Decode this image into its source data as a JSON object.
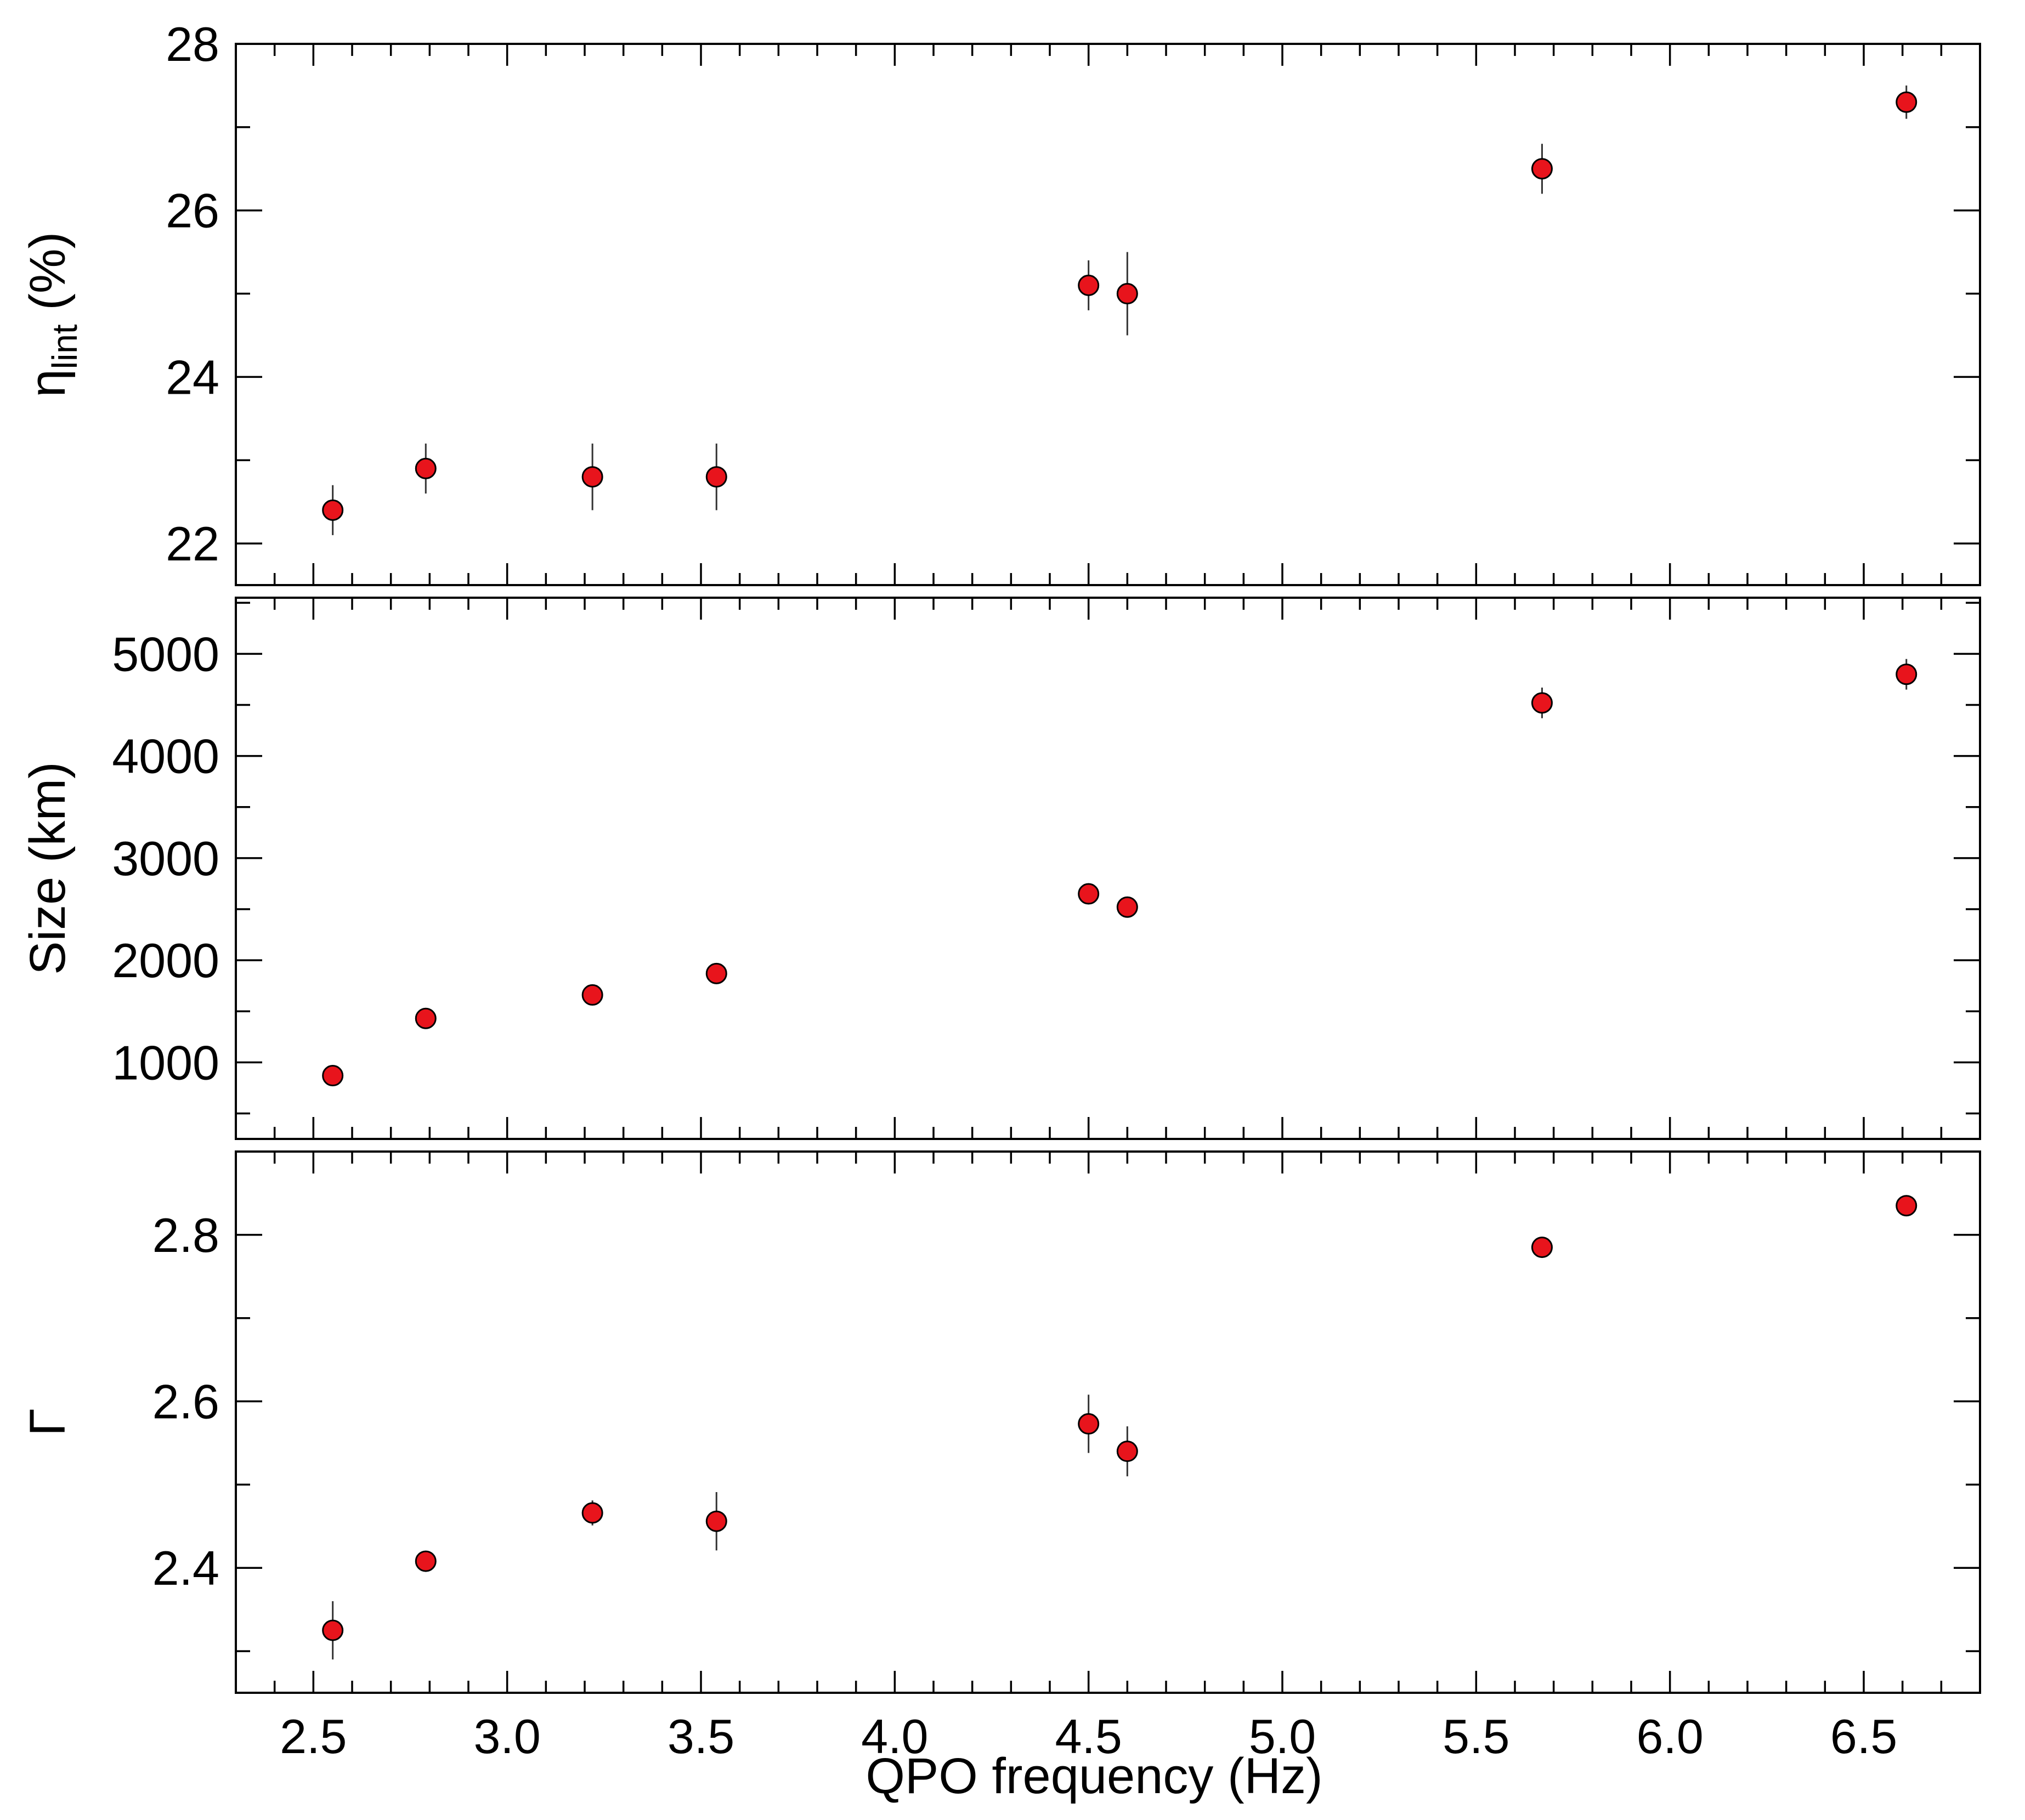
{
  "chart_data": {
    "type": "scatter",
    "shared_x": {
      "label": "QPO frequency (Hz)",
      "range": [
        2.3,
        6.8
      ],
      "ticks": [
        "2.5",
        "3.0",
        "3.5",
        "4.0",
        "4.5",
        "5.0",
        "5.5",
        "6.0",
        "6.5"
      ]
    },
    "marker_color": "#e8141c",
    "panels": [
      {
        "ylabel": "η",
        "ylabel_sub": "lint",
        "ylabel_suffix": " (%)",
        "ylim": [
          21.5,
          28.0
        ],
        "yticks": [
          "22",
          "24",
          "26",
          "28"
        ],
        "points": [
          {
            "x": 2.55,
            "y": 22.4,
            "err": 0.3
          },
          {
            "x": 2.79,
            "y": 22.9,
            "err": 0.3
          },
          {
            "x": 3.22,
            "y": 22.8,
            "err": 0.4
          },
          {
            "x": 3.54,
            "y": 22.8,
            "err": 0.4
          },
          {
            "x": 4.5,
            "y": 25.1,
            "err": 0.3
          },
          {
            "x": 4.6,
            "y": 25.0,
            "err": 0.5
          },
          {
            "x": 5.67,
            "y": 26.5,
            "err": 0.3
          },
          {
            "x": 6.61,
            "y": 27.3,
            "err": 0.2
          }
        ]
      },
      {
        "ylabel": "Size (km)",
        "ylim": [
          250,
          5550
        ],
        "yticks": [
          "1000",
          "2000",
          "3000",
          "4000",
          "5000"
        ],
        "points": [
          {
            "x": 2.55,
            "y": 870,
            "err": 40
          },
          {
            "x": 2.79,
            "y": 1430,
            "err": 40
          },
          {
            "x": 3.22,
            "y": 1660,
            "err": 40
          },
          {
            "x": 3.54,
            "y": 1870,
            "err": 40
          },
          {
            "x": 4.5,
            "y": 2650,
            "err": 60
          },
          {
            "x": 4.6,
            "y": 2520,
            "err": 100
          },
          {
            "x": 5.67,
            "y": 4520,
            "err": 150
          },
          {
            "x": 6.61,
            "y": 4800,
            "err": 150
          }
        ]
      },
      {
        "ylabel": "Γ",
        "ylim": [
          2.25,
          2.9
        ],
        "yticks": [
          "2.4",
          "2.6",
          "2.8"
        ],
        "points": [
          {
            "x": 2.55,
            "y": 2.325,
            "err": 0.035
          },
          {
            "x": 2.79,
            "y": 2.408,
            "err": 0.01
          },
          {
            "x": 3.22,
            "y": 2.466,
            "err": 0.015
          },
          {
            "x": 3.54,
            "y": 2.456,
            "err": 0.035
          },
          {
            "x": 4.5,
            "y": 2.573,
            "err": 0.035
          },
          {
            "x": 4.6,
            "y": 2.54,
            "err": 0.03
          },
          {
            "x": 5.67,
            "y": 2.785,
            "err": 0.005
          },
          {
            "x": 6.61,
            "y": 2.835,
            "err": 0.005
          }
        ]
      }
    ]
  }
}
